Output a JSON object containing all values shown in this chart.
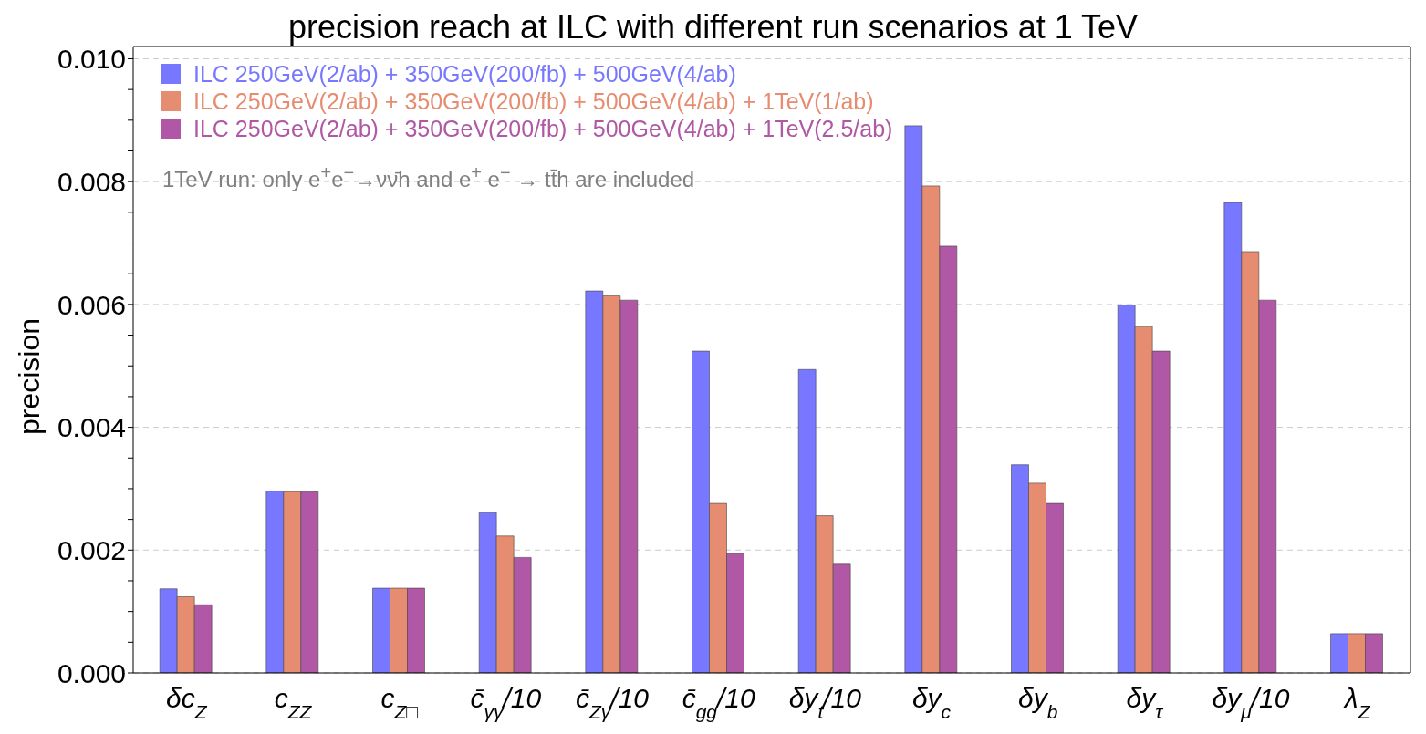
{
  "chart_data": {
    "type": "bar",
    "title": "precision reach at ILC with different run scenarios at 1 TeV",
    "ylabel": "precision",
    "categories": [
      "δc$_{Z}$",
      "c$_{ZZ}$",
      "c$_{Z□}$",
      "c̄$_{γγ}$/10",
      "c̄$_{Zγ}$/10",
      "c̄$_{gg}$/10",
      "δy$_{t}$/10",
      "δy$_{c}$",
      "δy$_{b}$",
      "δy$_{τ}$",
      "δy$_{μ}$/10",
      "λ$_{Z}$"
    ],
    "series": [
      {
        "name": "ILC 250GeV(2/ab) + 350GeV(200/fb) + 500GeV(4/ab)",
        "color": "#7777ff",
        "values": [
          0.00137,
          0.00296,
          0.00138,
          0.00261,
          0.00622,
          0.00524,
          0.00494,
          0.00891,
          0.00339,
          0.00599,
          0.00766,
          0.00064
        ]
      },
      {
        "name": "ILC 250GeV(2/ab) + 350GeV(200/fb) + 500GeV(4/ab) + 1TeV(1/ab)",
        "color": "#e68c70",
        "values": [
          0.00124,
          0.00295,
          0.00138,
          0.00223,
          0.00614,
          0.00276,
          0.00256,
          0.00793,
          0.00309,
          0.00564,
          0.00686,
          0.00064
        ]
      },
      {
        "name": "ILC 250GeV(2/ab) + 350GeV(200/fb) + 500GeV(4/ab) + 1TeV(2.5/ab)",
        "color": "#b057a5",
        "values": [
          0.00111,
          0.00295,
          0.00138,
          0.00188,
          0.00607,
          0.00194,
          0.00177,
          0.00695,
          0.00276,
          0.00524,
          0.00607,
          0.00064
        ]
      }
    ],
    "ylim": [
      0,
      0.0102
    ],
    "yticks": [
      {
        "value": 0,
        "label": "0.000"
      },
      {
        "value": 0.0005,
        "label": null
      },
      {
        "value": 0.001,
        "label": null
      },
      {
        "value": 0.0015,
        "label": null
      },
      {
        "value": 0.002,
        "label": "0.002"
      },
      {
        "value": 0.0025,
        "label": null
      },
      {
        "value": 0.003,
        "label": null
      },
      {
        "value": 0.0035,
        "label": null
      },
      {
        "value": 0.004,
        "label": "0.004"
      },
      {
        "value": 0.0045,
        "label": null
      },
      {
        "value": 0.005,
        "label": null
      },
      {
        "value": 0.0055,
        "label": null
      },
      {
        "value": 0.006,
        "label": "0.006"
      },
      {
        "value": 0.0065,
        "label": null
      },
      {
        "value": 0.007,
        "label": null
      },
      {
        "value": 0.0075,
        "label": null
      },
      {
        "value": 0.008,
        "label": "0.008"
      },
      {
        "value": 0.0085,
        "label": null
      },
      {
        "value": 0.009,
        "label": null
      },
      {
        "value": 0.0095,
        "label": null
      },
      {
        "value": 0.01,
        "label": "0.010"
      }
    ],
    "grid": "y",
    "legend": "top left",
    "annotations": [
      "1TeV run: only e$^{+}$e$^{−}$→νν̄h and e$^{+}$ e$^{−}$ → tt̄h are included"
    ]
  }
}
